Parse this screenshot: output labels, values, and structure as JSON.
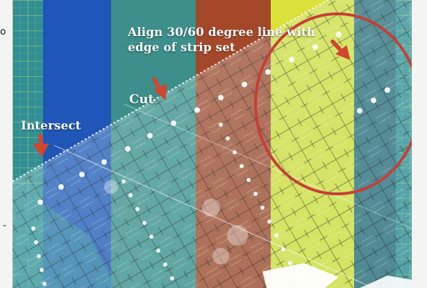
{
  "captions": {
    "align": "Align 30/60 degree line with edge of strip set",
    "cut": "Cut",
    "intersect": "Intersect"
  },
  "margin_marks": {
    "top_left": "o",
    "bottom_left": "-"
  },
  "colors": {
    "mat_green": "#2f8f97",
    "strip_blue": "#1f56b8",
    "strip_teal": "#3c8f8a",
    "strip_rust": "#a4482a",
    "strip_lime": "#d9e23a",
    "strip_dark_teal": "#2f6f7a",
    "grid_yellow": "#e2e36a",
    "arrow_red": "#d0462f",
    "circle_red": "#c93c37"
  }
}
